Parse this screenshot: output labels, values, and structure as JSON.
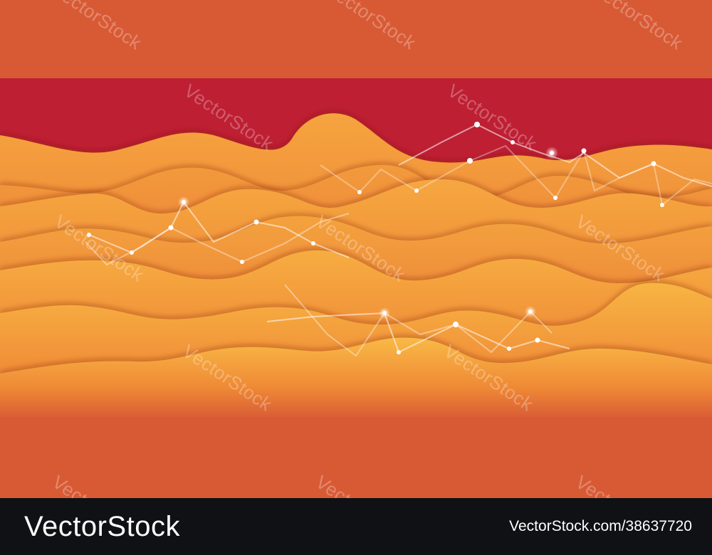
{
  "watermark": {
    "text": "VectorStock"
  },
  "footer": {
    "brand": "VectorStock",
    "asset_url": "VectorStock.com/38637720"
  },
  "colors": {
    "background": "#d85a35",
    "band": "#be1f33",
    "wave_light": "#f8b540",
    "wave_dark": "#e9712e",
    "footer": "#0f1114"
  }
}
